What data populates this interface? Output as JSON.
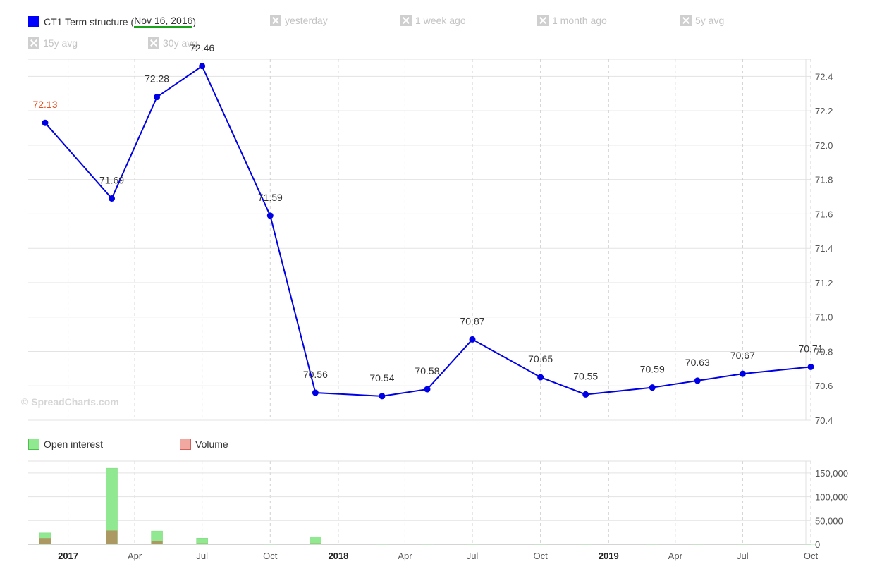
{
  "legend": {
    "main_prefix": "CT1 Term structure (",
    "main_date": "Nov 16, 2016",
    "main_suffix": ")",
    "toggles": [
      "yesterday",
      "1 week ago",
      "1 month ago",
      "5y avg",
      "15y avg",
      "30y avg"
    ],
    "main_color": "#0000ff"
  },
  "watermark": "© SpreadCharts.com",
  "volume_legend": {
    "open_interest": "Open interest",
    "volume": "Volume",
    "oi_color": "#90e890",
    "vol_color": "#f0a8a0"
  },
  "chart_data": [
    {
      "type": "line",
      "x": [
        "2016-12-01",
        "2017-03-01",
        "2017-05-01",
        "2017-07-01",
        "2017-10-01",
        "2017-12-01",
        "2018-03-01",
        "2018-05-01",
        "2018-07-01",
        "2018-10-01",
        "2018-12-01",
        "2019-03-01",
        "2019-05-01",
        "2019-07-01",
        "2019-10-01"
      ],
      "series": [
        {
          "values": [
            72.13,
            71.69,
            72.28,
            72.46,
            71.59,
            70.56,
            70.54,
            70.58,
            70.87,
            70.65,
            70.55,
            70.59,
            70.63,
            70.67,
            70.71
          ]
        }
      ],
      "highlight_first_label_color": "#e8501e",
      "ylim": [
        70.4,
        72.5
      ],
      "y_ticks": [
        "70.4",
        "70.6",
        "70.8",
        "71.0",
        "71.2",
        "71.4",
        "71.6",
        "71.8",
        "72.0",
        "72.2",
        "72.4"
      ],
      "grid": true
    },
    {
      "type": "bar",
      "x": [
        "2016-12-01",
        "2017-03-01",
        "2017-05-01",
        "2017-07-01",
        "2017-10-01",
        "2017-12-01",
        "2018-03-01",
        "2018-05-01",
        "2018-07-01",
        "2018-10-01",
        "2018-12-01",
        "2019-03-01",
        "2019-05-01",
        "2019-07-01",
        "2019-10-01"
      ],
      "series": [
        {
          "name": "Open interest",
          "values": [
            24000,
            160000,
            28000,
            13000,
            1000,
            16000,
            800,
            500,
            300,
            600,
            300,
            300,
            200,
            100,
            100
          ]
        },
        {
          "name": "Volume",
          "values": [
            13000,
            29000,
            6000,
            2000,
            400,
            2000,
            100,
            100,
            50,
            100,
            50,
            50,
            50,
            20,
            20
          ]
        }
      ],
      "ylim": [
        0,
        175000
      ],
      "y_ticks": [
        "0",
        "50,000",
        "100,000",
        "150,000"
      ],
      "x_ticks": [
        {
          "date": "2017-01-01",
          "label": "2017",
          "bold": true
        },
        {
          "date": "2017-04-01",
          "label": "Apr"
        },
        {
          "date": "2017-07-01",
          "label": "Jul"
        },
        {
          "date": "2017-10-01",
          "label": "Oct"
        },
        {
          "date": "2018-01-01",
          "label": "2018",
          "bold": true
        },
        {
          "date": "2018-04-01",
          "label": "Apr"
        },
        {
          "date": "2018-07-01",
          "label": "Jul"
        },
        {
          "date": "2018-10-01",
          "label": "Oct"
        },
        {
          "date": "2019-01-01",
          "label": "2019",
          "bold": true
        },
        {
          "date": "2019-04-01",
          "label": "Apr"
        },
        {
          "date": "2019-07-01",
          "label": "Jul"
        },
        {
          "date": "2019-10-01",
          "label": "Oct"
        }
      ]
    }
  ]
}
